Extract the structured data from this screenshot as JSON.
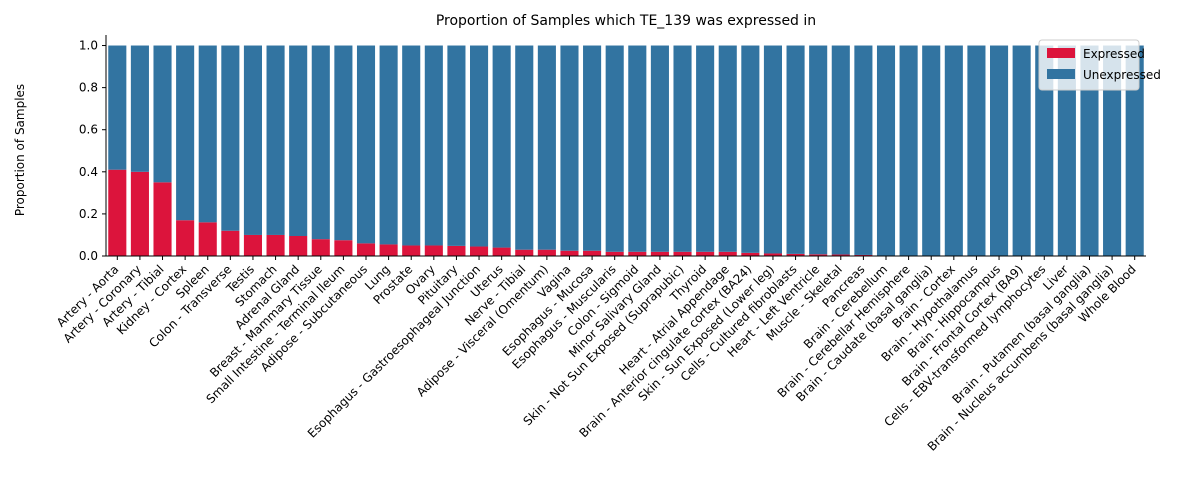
{
  "chart_data": {
    "type": "bar",
    "stacked": true,
    "title": "Proportion of Samples which TE_139 was expressed in",
    "xlabel": "",
    "ylabel": "Proportion of Samples",
    "ylim": [
      0,
      1.05
    ],
    "yticks": [
      "0.0",
      "0.2",
      "0.4",
      "0.6",
      "0.8",
      "1.0"
    ],
    "ytick_values": [
      0.0,
      0.2,
      0.4,
      0.6,
      0.8,
      1.0
    ],
    "grid": false,
    "legend_position": "top-right",
    "categories": [
      "Artery - Aorta",
      "Artery - Coronary",
      "Artery - Tibial",
      "Kidney - Cortex",
      "Spleen",
      "Colon - Transverse",
      "Testis",
      "Stomach",
      "Adrenal Gland",
      "Breast - Mammary Tissue",
      "Small Intestine - Terminal Ileum",
      "Adipose - Subcutaneous",
      "Lung",
      "Prostate",
      "Ovary",
      "Pituitary",
      "Esophagus - Gastroesophageal Junction",
      "Uterus",
      "Nerve - Tibial",
      "Adipose - Visceral (Omentum)",
      "Vagina",
      "Esophagus - Mucosa",
      "Esophagus - Muscularis",
      "Colon - Sigmoid",
      "Minor Salivary Gland",
      "Skin - Not Sun Exposed (Suprapubic)",
      "Thyroid",
      "Heart - Atrial Appendage",
      "Brain - Anterior cingulate cortex (BA24)",
      "Skin - Sun Exposed (Lower leg)",
      "Cells - Cultured fibroblasts",
      "Heart - Left Ventricle",
      "Muscle - Skeletal",
      "Pancreas",
      "Brain - Cerebellum",
      "Brain - Cerebellar Hemisphere",
      "Brain - Caudate (basal ganglia)",
      "Brain - Cortex",
      "Brain - Hypothalamus",
      "Brain - Hippocampus",
      "Brain - Frontal Cortex (BA9)",
      "Cells - EBV-transformed lymphocytes",
      "Liver",
      "Brain - Putamen (basal ganglia)",
      "Brain - Nucleus accumbens (basal ganglia)",
      "Whole Blood"
    ],
    "series": [
      {
        "name": "Expressed",
        "color": "#dc143c",
        "values": [
          0.41,
          0.4,
          0.35,
          0.17,
          0.16,
          0.12,
          0.1,
          0.1,
          0.095,
          0.08,
          0.075,
          0.06,
          0.055,
          0.05,
          0.05,
          0.048,
          0.045,
          0.04,
          0.03,
          0.03,
          0.025,
          0.025,
          0.02,
          0.02,
          0.02,
          0.02,
          0.02,
          0.02,
          0.015,
          0.012,
          0.01,
          0.008,
          0.007,
          0.005,
          0.0,
          0.0,
          0.0,
          0.0,
          0.0,
          0.0,
          0.0,
          0.0,
          0.0,
          0.0,
          0.0,
          0.0
        ]
      },
      {
        "name": "Unexpressed",
        "color": "#3274a1",
        "values": [
          0.59,
          0.6,
          0.65,
          0.83,
          0.84,
          0.88,
          0.9,
          0.9,
          0.905,
          0.92,
          0.925,
          0.94,
          0.945,
          0.95,
          0.95,
          0.952,
          0.955,
          0.96,
          0.97,
          0.97,
          0.975,
          0.975,
          0.98,
          0.98,
          0.98,
          0.98,
          0.98,
          0.98,
          0.985,
          0.988,
          0.99,
          0.992,
          0.993,
          0.995,
          1.0,
          1.0,
          1.0,
          1.0,
          1.0,
          1.0,
          1.0,
          1.0,
          1.0,
          1.0,
          1.0,
          1.0
        ]
      }
    ]
  }
}
